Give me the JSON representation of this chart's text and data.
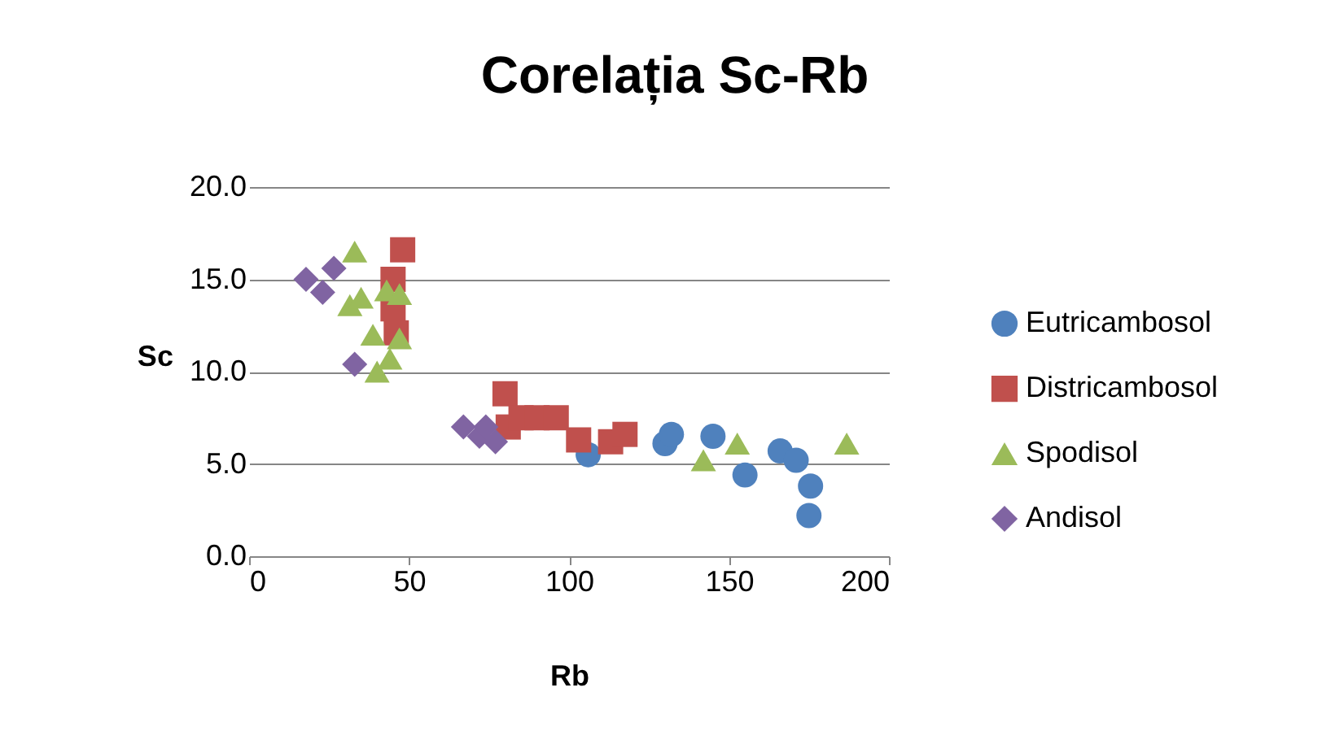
{
  "chart_data": {
    "type": "scatter",
    "title": "Corelația Sc-Rb",
    "xlabel": "Rb",
    "ylabel": "Sc",
    "xlim": [
      0,
      200
    ],
    "xticks": [
      0,
      50,
      100,
      150,
      200
    ],
    "ylim": [
      0,
      20
    ],
    "yticks": [
      {
        "value": 0,
        "label": "0.0"
      },
      {
        "value": 5,
        "label": "5.0"
      },
      {
        "value": 10,
        "label": "10.0"
      },
      {
        "value": 15,
        "label": "15.0"
      },
      {
        "value": 20,
        "label": "20.0"
      }
    ],
    "grid": "y",
    "legend": "right",
    "series": [
      {
        "name": "Eutricambosol",
        "color": "#4f81bd",
        "marker": "circle",
        "x": [
          106,
          130,
          132,
          145,
          155,
          166,
          171,
          175.5,
          175
        ],
        "values": [
          5.5,
          6.1,
          6.6,
          6.5,
          4.4,
          5.7,
          5.2,
          3.8,
          2.2
        ]
      },
      {
        "name": "Districambosol",
        "color": "#c0504d",
        "marker": "square",
        "x": [
          48,
          45,
          45,
          46,
          80,
          81,
          85,
          90,
          96,
          103,
          113,
          117.5
        ],
        "values": [
          16.6,
          15.0,
          13.4,
          12.1,
          8.8,
          7.0,
          7.5,
          7.5,
          7.5,
          6.3,
          6.2,
          6.6
        ]
      },
      {
        "name": "Spodisol",
        "color": "#9bbb59",
        "marker": "triangle",
        "x": [
          33,
          31.5,
          35,
          43,
          47,
          38.7,
          47,
          40,
          44,
          152.6,
          142,
          186.8
        ],
        "values": [
          16.5,
          13.6,
          14.0,
          14.4,
          14.2,
          12.0,
          11.8,
          10.0,
          10.7,
          6.1,
          5.2,
          6.1
        ]
      },
      {
        "name": "Andisol",
        "color": "#8064a2",
        "marker": "diamond",
        "x": [
          17.8,
          23,
          26.5,
          33,
          67,
          72,
          77,
          74
        ],
        "values": [
          15.0,
          14.3,
          15.6,
          10.4,
          7.0,
          6.5,
          6.2,
          7.0
        ]
      }
    ]
  }
}
